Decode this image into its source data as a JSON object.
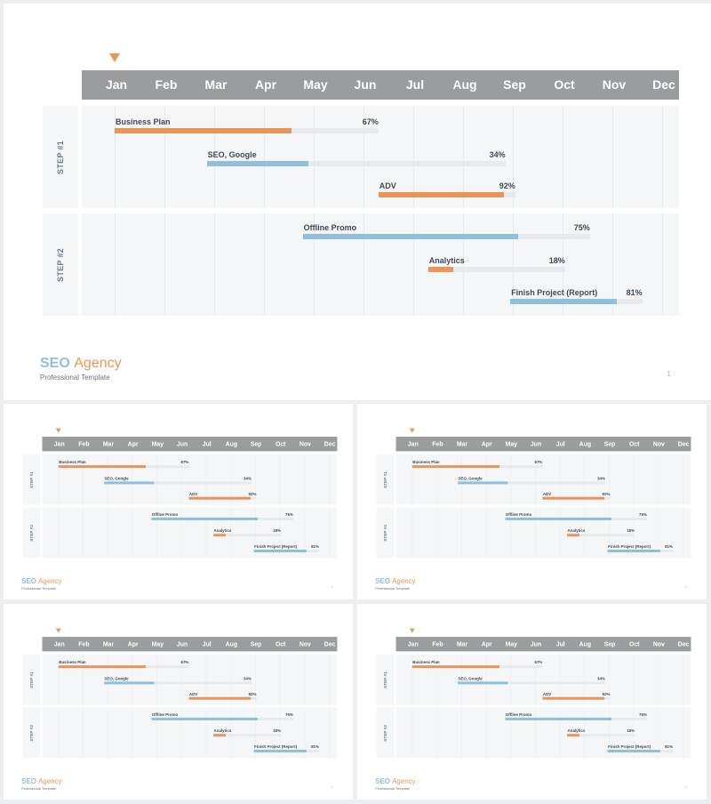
{
  "chart_data": {
    "type": "gantt",
    "months": [
      "Jan",
      "Feb",
      "Mar",
      "Apr",
      "May",
      "Jun",
      "Jul",
      "Aug",
      "Sep",
      "Oct",
      "Nov",
      "Dec"
    ],
    "steps": [
      {
        "label": "STEP #1",
        "tasks": [
          {
            "name": "Business Plan",
            "start": 0.0,
            "end": 5.3,
            "percent": 67,
            "percent_label": "67%",
            "color": "#e8955a"
          },
          {
            "name": "SEO, Google",
            "start": 1.85,
            "end": 7.85,
            "percent": 34,
            "percent_label": "34%",
            "color": "#8fbfdc"
          },
          {
            "name": "ADV",
            "start": 5.3,
            "end": 8.05,
            "percent": 92,
            "percent_label": "92%",
            "color": "#e8955a"
          }
        ]
      },
      {
        "label": "STEP #2",
        "tasks": [
          {
            "name": "Offline Promo",
            "start": 3.78,
            "end": 9.55,
            "percent": 75,
            "percent_label": "75%",
            "color": "#8fbfdc"
          },
          {
            "name": "Analytics",
            "start": 6.3,
            "end": 9.05,
            "percent": 18,
            "percent_label": "18%",
            "color": "#e8955a"
          },
          {
            "name": "Finish Project (Report)",
            "start": 7.95,
            "end": 10.6,
            "percent": 81,
            "percent_label": "81%",
            "color": "#8fbfdc"
          }
        ]
      }
    ]
  },
  "brand": {
    "seo": "SEO",
    "agency": "Agency",
    "subtitle": "Professional Template"
  },
  "page_number": "1",
  "colors": {
    "orange": "#e8955a",
    "blue": "#8fbfdc",
    "month_bar": "#9a9d9e",
    "panel": "#f4f6f8",
    "track": "#e6eaed"
  }
}
